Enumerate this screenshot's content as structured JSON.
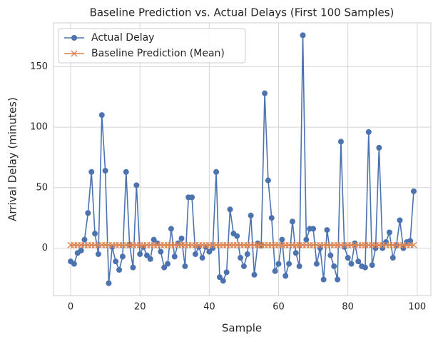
{
  "chart_data": {
    "type": "line",
    "title": "Baseline Prediction vs. Actual Delays (First 100 Samples)",
    "xlabel": "Sample",
    "ylabel": "Arrival Delay (minutes)",
    "x": [
      0,
      1,
      2,
      3,
      4,
      5,
      6,
      7,
      8,
      9,
      10,
      11,
      12,
      13,
      14,
      15,
      16,
      17,
      18,
      19,
      20,
      21,
      22,
      23,
      24,
      25,
      26,
      27,
      28,
      29,
      30,
      31,
      32,
      33,
      34,
      35,
      36,
      37,
      38,
      39,
      40,
      41,
      42,
      43,
      44,
      45,
      46,
      47,
      48,
      49,
      50,
      51,
      52,
      53,
      54,
      55,
      56,
      57,
      58,
      59,
      60,
      61,
      62,
      63,
      64,
      65,
      66,
      67,
      68,
      69,
      70,
      71,
      72,
      73,
      74,
      75,
      76,
      77,
      78,
      79,
      80,
      81,
      82,
      83,
      84,
      85,
      86,
      87,
      88,
      89,
      90,
      91,
      92,
      93,
      94,
      95,
      96,
      97,
      98,
      99
    ],
    "series": [
      {
        "name": "Actual Delay",
        "color": "#4c72b0",
        "marker": "o",
        "values": [
          -11,
          -13,
          -4,
          -2,
          7,
          29,
          63,
          12,
          -5,
          110,
          64,
          -29,
          1,
          -11,
          -18,
          -7,
          63,
          3,
          -16,
          52,
          -5,
          1,
          -6,
          -9,
          7,
          4,
          -3,
          -16,
          -13,
          16,
          -7,
          4,
          8,
          -15,
          42,
          42,
          -5,
          1,
          -8,
          1,
          -3,
          0,
          63,
          -24,
          -27,
          -20,
          32,
          12,
          10,
          -8,
          -15,
          -5,
          27,
          -22,
          4,
          2,
          128,
          56,
          25,
          -19,
          -13,
          7,
          -23,
          -13,
          22,
          -4,
          -15,
          176,
          7,
          16,
          16,
          -13,
          0,
          -26,
          15,
          -6,
          -15,
          -26,
          88,
          1,
          -8,
          -13,
          4,
          -11,
          -15,
          -16,
          96,
          -14,
          0,
          83,
          0,
          5,
          13,
          -8,
          2,
          23,
          0,
          5,
          6,
          47
        ]
      },
      {
        "name": "Baseline Prediction (Mean)",
        "color": "#dd8452",
        "marker": "x",
        "values": [
          2.5,
          2.5,
          2.5,
          2.5,
          2.5,
          2.5,
          2.5,
          2.5,
          2.5,
          2.5,
          2.5,
          2.5,
          2.5,
          2.5,
          2.5,
          2.5,
          2.5,
          2.5,
          2.5,
          2.5,
          2.5,
          2.5,
          2.5,
          2.5,
          2.5,
          2.5,
          2.5,
          2.5,
          2.5,
          2.5,
          2.5,
          2.5,
          2.5,
          2.5,
          2.5,
          2.5,
          2.5,
          2.5,
          2.5,
          2.5,
          2.5,
          2.5,
          2.5,
          2.5,
          2.5,
          2.5,
          2.5,
          2.5,
          2.5,
          2.5,
          2.5,
          2.5,
          2.5,
          2.5,
          2.5,
          2.5,
          2.5,
          2.5,
          2.5,
          2.5,
          2.5,
          2.5,
          2.5,
          2.5,
          2.5,
          2.5,
          2.5,
          2.5,
          2.5,
          2.5,
          2.5,
          2.5,
          2.5,
          2.5,
          2.5,
          2.5,
          2.5,
          2.5,
          2.5,
          2.5,
          2.5,
          2.5,
          2.5,
          2.5,
          2.5,
          2.5,
          2.5,
          2.5,
          2.5,
          2.5,
          2.5,
          2.5,
          2.5,
          2.5,
          2.5,
          2.5,
          2.5,
          2.5,
          2.5,
          2.5
        ]
      }
    ],
    "xlim": [
      -4.95,
      103.95
    ],
    "xticks": [
      0,
      20,
      40,
      60,
      80,
      100
    ],
    "ylim": [
      -39.25,
      186.25
    ],
    "yticks": [
      0,
      50,
      100,
      150
    ],
    "grid": true,
    "legend": "upper left"
  }
}
